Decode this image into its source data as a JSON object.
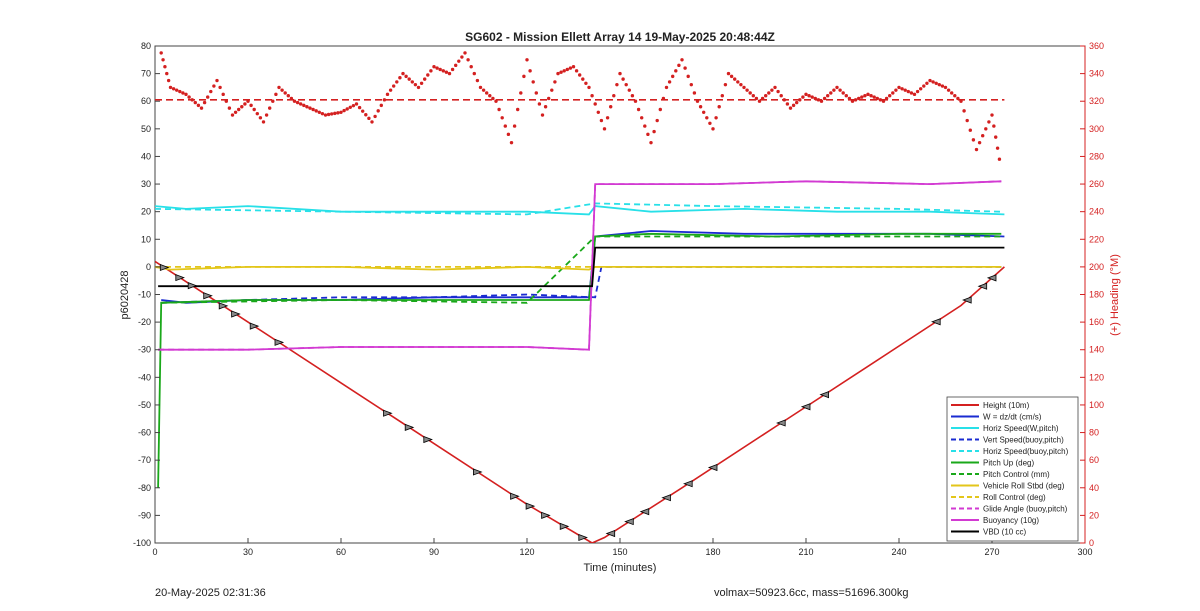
{
  "footer": {
    "timestamp": "20-May-2025 02:31:36",
    "mass_info": "volmax=50923.6cc, mass=51696.300kg"
  },
  "colors": {
    "red": "#d42020",
    "blue": "#1a2bd1",
    "cyan": "#28e0e8",
    "green": "#1aa81a",
    "yellow": "#e3c61a",
    "magenta": "#d23ad2",
    "black": "#000000"
  },
  "chart_data": {
    "type": "line",
    "title": "SG602 - Mission Ellett Array 14 19-May-2025 20:48:44Z",
    "xlabel": "Time (minutes)",
    "ylabel": "p6020428",
    "y2label": "(+) Heading (°M)",
    "xlim": [
      0,
      300
    ],
    "ylim": [
      -100,
      80
    ],
    "y2lim": [
      0,
      360
    ],
    "xticks": [
      0,
      30,
      60,
      90,
      120,
      150,
      180,
      210,
      240,
      270,
      300
    ],
    "yticks": [
      -100,
      -90,
      -80,
      -70,
      -60,
      -50,
      -40,
      -30,
      -20,
      -10,
      0,
      10,
      20,
      30,
      40,
      50,
      60,
      70,
      80
    ],
    "y2ticks": [
      0,
      20,
      40,
      60,
      80,
      100,
      120,
      140,
      160,
      180,
      200,
      220,
      240,
      260,
      280,
      300,
      320,
      340,
      360
    ],
    "grid": false,
    "legend_position": "bottom-right",
    "heading_mean": 321,
    "series": [
      {
        "name": "Height (10m)",
        "color": "#d42020",
        "style": "solid",
        "axis": "left",
        "x": [
          0,
          30,
          60,
          90,
          120,
          141,
          145,
          170,
          200,
          230,
          260,
          274
        ],
        "y": [
          2,
          -20,
          -42,
          -64,
          -86,
          -100,
          -98,
          -80,
          -58,
          -36,
          -14,
          0
        ]
      },
      {
        "name": "W = dz/dt (cm/s)",
        "color": "#1a2bd1",
        "style": "solid",
        "axis": "left",
        "x": [
          2,
          10,
          30,
          60,
          90,
          120,
          140,
          142,
          160,
          190,
          220,
          250,
          274
        ],
        "y": [
          -12,
          -13,
          -12,
          -12,
          -11,
          -11,
          -11,
          11,
          13,
          12,
          12,
          12,
          11
        ]
      },
      {
        "name": "Horiz Speed(W,pitch)",
        "color": "#28e0e8",
        "style": "solid",
        "axis": "left",
        "x": [
          0,
          10,
          30,
          60,
          90,
          120,
          140,
          142,
          160,
          190,
          220,
          250,
          274
        ],
        "y": [
          22,
          21,
          22,
          20,
          20,
          20,
          19,
          22,
          20,
          21,
          20,
          20,
          19
        ]
      },
      {
        "name": "Vert Speed(buoy,pitch)",
        "color": "#1a2bd1",
        "style": "dashed",
        "axis": "left",
        "x": [
          2,
          30,
          60,
          90,
          120,
          142,
          144,
          180,
          220,
          273
        ],
        "y": [
          -13,
          -12,
          -11,
          -11,
          -10,
          -11,
          0,
          0,
          0,
          0
        ]
      },
      {
        "name": "Horiz Speed(buoy,pitch)",
        "color": "#28e0e8",
        "style": "dashed",
        "axis": "left",
        "x": [
          0,
          60,
          120,
          142,
          180,
          240,
          273
        ],
        "y": [
          21,
          20,
          19,
          23,
          22,
          21,
          20
        ]
      },
      {
        "name": "Pitch Up (deg)",
        "color": "#1aa81a",
        "style": "solid",
        "axis": "left",
        "x": [
          1,
          2,
          30,
          60,
          90,
          120,
          140,
          142,
          160,
          200,
          240,
          273
        ],
        "y": [
          -80,
          -13,
          -12,
          -12,
          -12,
          -12,
          -12,
          11,
          12,
          11,
          12,
          12
        ]
      },
      {
        "name": "Pitch Control (mm)",
        "color": "#1aa81a",
        "style": "dashed",
        "axis": "left",
        "x": [
          2,
          60,
          120,
          142,
          200,
          273
        ],
        "y": [
          -13,
          -12,
          -13,
          11,
          11,
          11
        ]
      },
      {
        "name": "Vehicle Roll Stbd (deg)",
        "color": "#e3c61a",
        "style": "solid",
        "axis": "left",
        "x": [
          0,
          5,
          30,
          60,
          90,
          120,
          140,
          142,
          180,
          220,
          260,
          273
        ],
        "y": [
          0,
          -1,
          0,
          0,
          -1,
          0,
          -1,
          0,
          0,
          0,
          0,
          0
        ]
      },
      {
        "name": "Roll Control (deg)",
        "color": "#e3c61a",
        "style": "dashed",
        "axis": "left",
        "x": [
          0,
          60,
          120,
          142,
          200,
          273
        ],
        "y": [
          0,
          0,
          0,
          0,
          0,
          0
        ]
      },
      {
        "name": "Glide Angle (buoy,pitch)",
        "color": "#d23ad2",
        "style": "dashed",
        "axis": "left",
        "x": [
          1,
          30,
          60,
          90,
          120,
          140,
          142,
          180,
          210,
          250,
          273
        ],
        "y": [
          -30,
          -30,
          -29,
          -29,
          -29,
          -30,
          30,
          30,
          31,
          30,
          31
        ]
      },
      {
        "name": "Buoyancy (10g)",
        "color": "#d23ad2",
        "style": "solid",
        "axis": "left",
        "x": [
          1,
          30,
          60,
          90,
          120,
          140,
          142,
          180,
          210,
          250,
          273
        ],
        "y": [
          -30,
          -30,
          -29,
          -29,
          -29,
          -30,
          30,
          30,
          31,
          30,
          31
        ]
      },
      {
        "name": "VBD (10 cc)",
        "color": "#000000",
        "style": "solid",
        "axis": "left",
        "x": [
          1,
          141,
          142,
          274
        ],
        "y": [
          -7,
          -7,
          7,
          7
        ]
      }
    ],
    "heading": {
      "name": "Heading",
      "color": "#d42020",
      "x": [
        2,
        5,
        10,
        15,
        20,
        25,
        30,
        35,
        40,
        45,
        50,
        55,
        60,
        65,
        70,
        75,
        80,
        85,
        90,
        95,
        100,
        105,
        110,
        115,
        120,
        125,
        130,
        135,
        140,
        145,
        150,
        155,
        160,
        165,
        170,
        175,
        180,
        185,
        190,
        195,
        200,
        205,
        210,
        215,
        220,
        225,
        230,
        235,
        240,
        245,
        250,
        255,
        260,
        265,
        270,
        273
      ],
      "y": [
        355,
        330,
        325,
        315,
        335,
        310,
        320,
        305,
        330,
        320,
        315,
        310,
        312,
        318,
        305,
        325,
        340,
        330,
        345,
        340,
        355,
        330,
        320,
        290,
        350,
        310,
        340,
        345,
        330,
        300,
        340,
        320,
        290,
        330,
        350,
        320,
        300,
        340,
        330,
        320,
        330,
        315,
        325,
        320,
        330,
        320,
        325,
        320,
        330,
        325,
        335,
        330,
        320,
        285,
        310,
        270
      ]
    }
  }
}
